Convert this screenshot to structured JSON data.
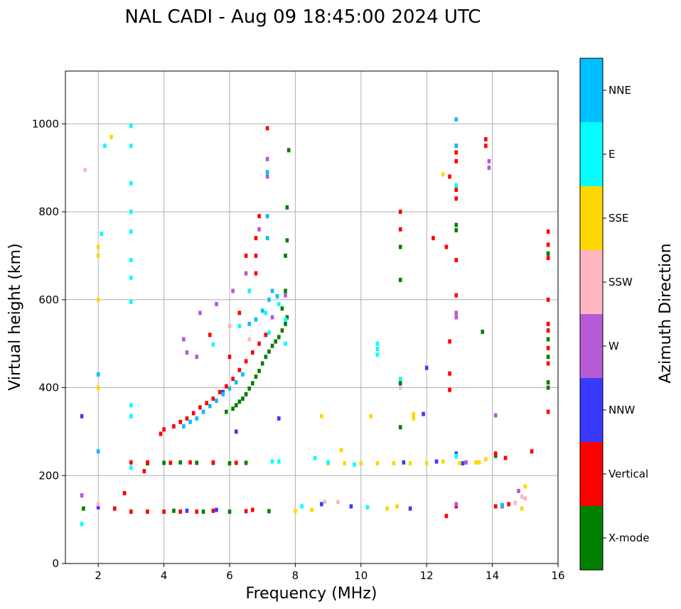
{
  "chart_data": {
    "type": "scatter",
    "title": "NAL CADI - Aug 09 18:45:00 2024 UTC",
    "xlabel": "Frequency (MHz)",
    "ylabel": "Virtual height (km)",
    "xlim": [
      1,
      16
    ],
    "ylim": [
      0,
      1120
    ],
    "xticks": [
      2,
      4,
      6,
      8,
      10,
      12,
      14,
      16
    ],
    "yticks": [
      0,
      200,
      400,
      600,
      800,
      1000
    ],
    "grid": true,
    "colorbar": {
      "label": "Azimuth Direction",
      "categories": [
        "X-mode",
        "Vertical",
        "NNW",
        "W",
        "SSW",
        "SSE",
        "E",
        "NNE"
      ],
      "colors": [
        "#008000",
        "#ff0000",
        "#3a3aff",
        "#b65ad6",
        "#ffb6c1",
        "#ffd700",
        "#00ffff",
        "#00bfff"
      ]
    },
    "series": [
      {
        "name": "X-mode",
        "points": [
          [
            1.55,
            125
          ],
          [
            5.9,
            345
          ],
          [
            6.1,
            352
          ],
          [
            6.2,
            360
          ],
          [
            6.3,
            368
          ],
          [
            6.4,
            375
          ],
          [
            6.5,
            385
          ],
          [
            6.6,
            398
          ],
          [
            6.7,
            410
          ],
          [
            6.8,
            425
          ],
          [
            6.9,
            438
          ],
          [
            7.0,
            455
          ],
          [
            7.1,
            470
          ],
          [
            7.2,
            482
          ],
          [
            7.3,
            495
          ],
          [
            7.4,
            505
          ],
          [
            7.5,
            515
          ],
          [
            7.6,
            530
          ],
          [
            7.7,
            545
          ],
          [
            7.75,
            560
          ],
          [
            7.6,
            580
          ],
          [
            7.7,
            620
          ],
          [
            7.7,
            700
          ],
          [
            7.75,
            735
          ],
          [
            7.75,
            810
          ],
          [
            7.8,
            940
          ],
          [
            3.5,
            228
          ],
          [
            4.0,
            229
          ],
          [
            4.5,
            230
          ],
          [
            5.0,
            229
          ],
          [
            5.5,
            229
          ],
          [
            6.0,
            228
          ],
          [
            6.5,
            229
          ],
          [
            4.3,
            120
          ],
          [
            5.2,
            118
          ],
          [
            6.0,
            118
          ],
          [
            7.2,
            119
          ],
          [
            11.2,
            310
          ],
          [
            11.2,
            410
          ],
          [
            11.2,
            720
          ],
          [
            11.2,
            645
          ],
          [
            12.9,
            770
          ],
          [
            12.9,
            758
          ],
          [
            13.7,
            527
          ],
          [
            14.1,
            245
          ],
          [
            15.7,
            400
          ],
          [
            15.7,
            412
          ],
          [
            15.7,
            705
          ],
          [
            15.7,
            510
          ],
          [
            15.7,
            470
          ]
        ]
      },
      {
        "name": "Vertical",
        "points": [
          [
            3.9,
            295
          ],
          [
            4.0,
            305
          ],
          [
            4.3,
            312
          ],
          [
            4.5,
            322
          ],
          [
            4.7,
            330
          ],
          [
            4.9,
            342
          ],
          [
            5.1,
            355
          ],
          [
            5.3,
            365
          ],
          [
            5.5,
            375
          ],
          [
            5.7,
            390
          ],
          [
            5.9,
            403
          ],
          [
            6.1,
            420
          ],
          [
            6.3,
            440
          ],
          [
            6.5,
            460
          ],
          [
            6.7,
            480
          ],
          [
            6.9,
            500
          ],
          [
            7.1,
            520
          ],
          [
            6.3,
            570
          ],
          [
            6.6,
            620
          ],
          [
            6.8,
            660
          ],
          [
            6.8,
            740
          ],
          [
            6.9,
            790
          ],
          [
            7.15,
            990
          ],
          [
            6.5,
            700
          ],
          [
            3.0,
            230
          ],
          [
            3.5,
            230
          ],
          [
            4.2,
            229
          ],
          [
            4.8,
            230
          ],
          [
            5.5,
            230
          ],
          [
            6.2,
            229
          ],
          [
            2.5,
            125
          ],
          [
            3.0,
            118
          ],
          [
            3.5,
            118
          ],
          [
            4.0,
            118
          ],
          [
            4.5,
            118
          ],
          [
            5.0,
            118
          ],
          [
            5.5,
            120
          ],
          [
            6.5,
            119
          ],
          [
            6.7,
            122
          ],
          [
            3.4,
            210
          ],
          [
            2.8,
            160
          ],
          [
            11.2,
            800
          ],
          [
            11.2,
            760
          ],
          [
            12.2,
            740
          ],
          [
            12.6,
            720
          ],
          [
            12.7,
            880
          ],
          [
            12.9,
            950
          ],
          [
            12.9,
            935
          ],
          [
            12.9,
            915
          ],
          [
            12.9,
            850
          ],
          [
            12.9,
            830
          ],
          [
            12.9,
            690
          ],
          [
            12.9,
            610
          ],
          [
            12.7,
            505
          ],
          [
            12.7,
            432
          ],
          [
            12.7,
            395
          ],
          [
            12.6,
            108
          ],
          [
            12.9,
            130
          ],
          [
            13.8,
            965
          ],
          [
            13.8,
            950
          ],
          [
            14.1,
            130
          ],
          [
            14.5,
            135
          ],
          [
            14.1,
            250
          ],
          [
            14.4,
            240
          ],
          [
            15.2,
            255
          ],
          [
            15.7,
            755
          ],
          [
            15.7,
            725
          ],
          [
            15.7,
            695
          ],
          [
            15.7,
            600
          ],
          [
            15.7,
            545
          ],
          [
            15.7,
            530
          ],
          [
            15.7,
            490
          ],
          [
            15.7,
            455
          ],
          [
            15.7,
            345
          ],
          [
            5.4,
            520
          ],
          [
            6.0,
            470
          ],
          [
            6.8,
            700
          ]
        ]
      },
      {
        "name": "NNW",
        "points": [
          [
            1.5,
            335
          ],
          [
            2.0,
            128
          ],
          [
            4.7,
            120
          ],
          [
            5.6,
            122
          ],
          [
            8.8,
            135
          ],
          [
            9.7,
            130
          ],
          [
            11.5,
            125
          ],
          [
            12.3,
            232
          ],
          [
            13.1,
            228
          ],
          [
            11.3,
            230
          ],
          [
            12.9,
            250
          ],
          [
            12.0,
            445
          ],
          [
            11.9,
            340
          ],
          [
            5.8,
            390
          ],
          [
            6.2,
            300
          ],
          [
            7.5,
            330
          ]
        ]
      },
      {
        "name": "W",
        "points": [
          [
            1.5,
            155
          ],
          [
            4.6,
            510
          ],
          [
            5.1,
            570
          ],
          [
            5.6,
            590
          ],
          [
            6.1,
            620
          ],
          [
            6.5,
            660
          ],
          [
            7.15,
            920
          ],
          [
            7.15,
            880
          ],
          [
            6.9,
            760
          ],
          [
            12.9,
            570
          ],
          [
            12.9,
            560
          ],
          [
            13.9,
            915
          ],
          [
            13.9,
            900
          ],
          [
            14.1,
            337
          ],
          [
            13.2,
            230
          ],
          [
            12.9,
            135
          ],
          [
            14.8,
            165
          ],
          [
            14.3,
            130
          ],
          [
            7.7,
            610
          ],
          [
            7.3,
            560
          ],
          [
            5.0,
            470
          ],
          [
            4.7,
            480
          ]
        ]
      },
      {
        "name": "SSW",
        "points": [
          [
            6.0,
            540
          ],
          [
            6.6,
            510
          ],
          [
            8.9,
            140
          ],
          [
            9.3,
            140
          ],
          [
            11.2,
            400
          ],
          [
            12.9,
            242
          ],
          [
            14.7,
            138
          ],
          [
            14.9,
            152
          ],
          [
            15.0,
            148
          ],
          [
            1.6,
            895
          ],
          [
            2.0,
            135
          ]
        ]
      },
      {
        "name": "SSE",
        "points": [
          [
            2.0,
            720
          ],
          [
            2.0,
            700
          ],
          [
            2.0,
            600
          ],
          [
            2.0,
            400
          ],
          [
            2.4,
            970
          ],
          [
            8.0,
            120
          ],
          [
            8.5,
            122
          ],
          [
            9.0,
            228
          ],
          [
            9.5,
            228
          ],
          [
            10.0,
            228
          ],
          [
            10.5,
            228
          ],
          [
            11.0,
            228
          ],
          [
            11.5,
            228
          ],
          [
            12.0,
            228
          ],
          [
            12.5,
            232
          ],
          [
            13.0,
            228
          ],
          [
            13.5,
            230
          ],
          [
            8.8,
            335
          ],
          [
            10.3,
            335
          ],
          [
            11.6,
            340
          ],
          [
            11.6,
            330
          ],
          [
            9.4,
            258
          ],
          [
            10.8,
            125
          ],
          [
            11.1,
            130
          ],
          [
            12.5,
            885
          ],
          [
            14.9,
            125
          ],
          [
            15.0,
            175
          ],
          [
            13.8,
            237
          ],
          [
            13.6,
            230
          ]
        ]
      },
      {
        "name": "E",
        "points": [
          [
            1.5,
            90
          ],
          [
            3.0,
            995
          ],
          [
            3.0,
            950
          ],
          [
            3.0,
            865
          ],
          [
            3.0,
            800
          ],
          [
            3.0,
            755
          ],
          [
            3.0,
            690
          ],
          [
            3.0,
            650
          ],
          [
            3.0,
            595
          ],
          [
            3.0,
            360
          ],
          [
            3.0,
            335
          ],
          [
            3.0,
            218
          ],
          [
            2.2,
            950
          ],
          [
            2.1,
            750
          ],
          [
            5.5,
            498
          ],
          [
            6.3,
            540
          ],
          [
            6.6,
            620
          ],
          [
            7.1,
            570
          ],
          [
            7.2,
            525
          ],
          [
            7.7,
            555
          ],
          [
            7.7,
            500
          ],
          [
            7.5,
            590
          ],
          [
            8.2,
            130
          ],
          [
            8.6,
            240
          ],
          [
            9.0,
            230
          ],
          [
            9.8,
            225
          ],
          [
            10.2,
            128
          ],
          [
            10.5,
            500
          ],
          [
            10.5,
            488
          ],
          [
            10.5,
            475
          ],
          [
            11.2,
            420
          ],
          [
            12.9,
            860
          ],
          [
            7.3,
            232
          ],
          [
            7.5,
            232
          ],
          [
            12.9,
            245
          ]
        ]
      },
      {
        "name": "NNE",
        "points": [
          [
            2.0,
            255
          ],
          [
            2.0,
            430
          ],
          [
            4.6,
            312
          ],
          [
            4.8,
            322
          ],
          [
            5.0,
            330
          ],
          [
            5.2,
            345
          ],
          [
            5.4,
            358
          ],
          [
            5.6,
            370
          ],
          [
            5.8,
            385
          ],
          [
            6.0,
            398
          ],
          [
            6.2,
            412
          ],
          [
            6.4,
            430
          ],
          [
            6.6,
            545
          ],
          [
            6.8,
            555
          ],
          [
            7.0,
            575
          ],
          [
            7.2,
            600
          ],
          [
            7.3,
            620
          ],
          [
            7.45,
            608
          ],
          [
            7.15,
            740
          ],
          [
            7.15,
            790
          ],
          [
            7.15,
            890
          ],
          [
            12.9,
            1010
          ],
          [
            12.9,
            950
          ],
          [
            14.3,
            133
          ]
        ]
      }
    ]
  }
}
